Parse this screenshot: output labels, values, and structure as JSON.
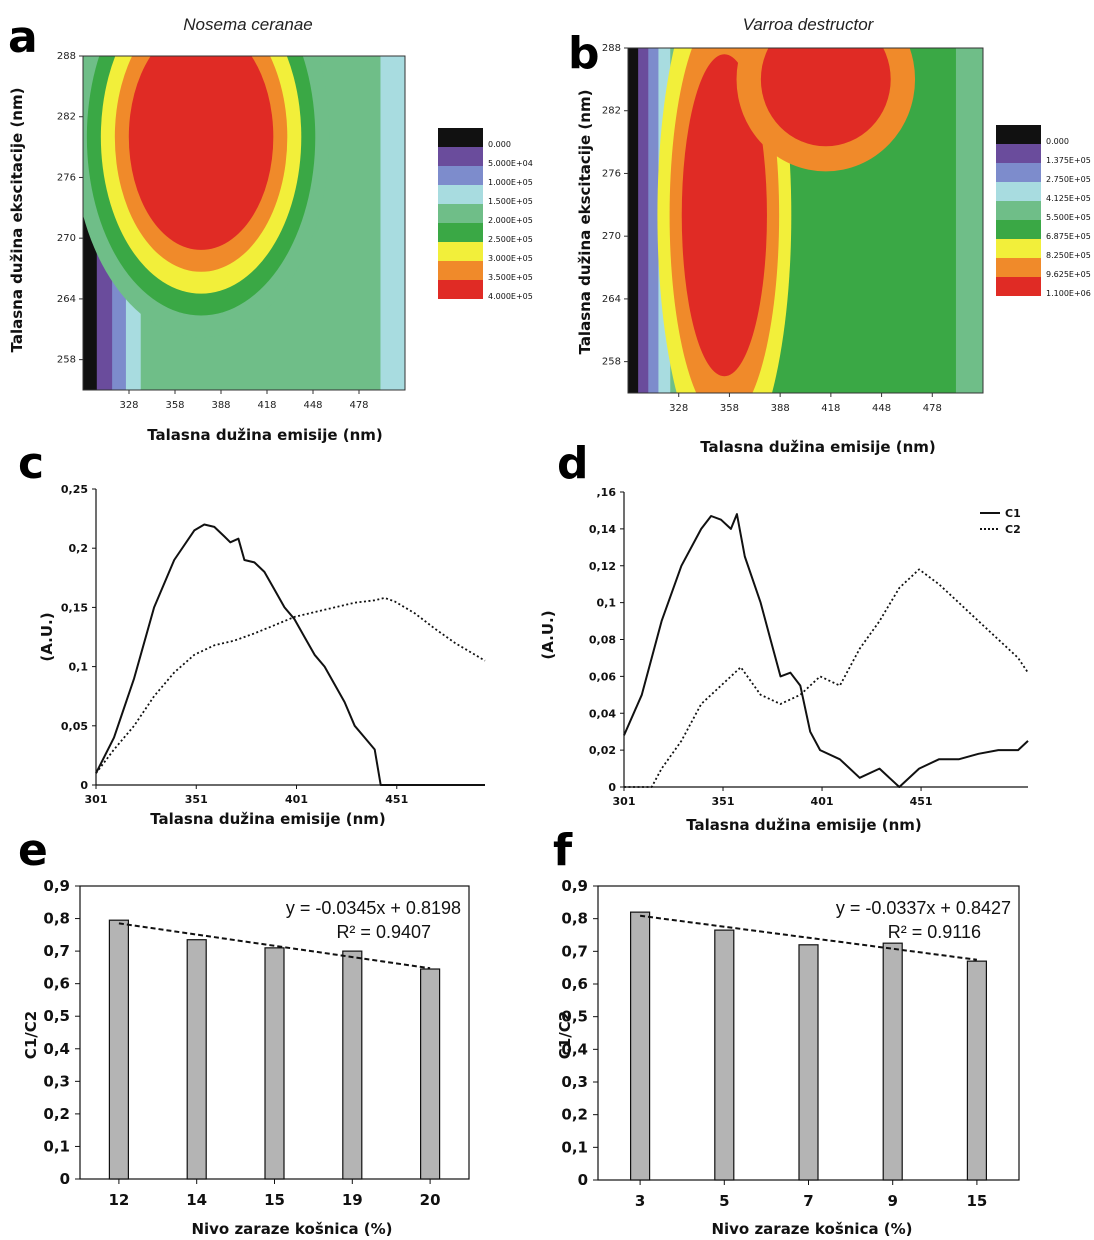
{
  "colors": {
    "scale": [
      "#111111",
      "#6a4c9c",
      "#7d8ccc",
      "#a8dce0",
      "#6fbe88",
      "#3aa845",
      "#f2ef3a",
      "#f08a2a",
      "#e02b25"
    ],
    "bar_fill": "#b4b4b4",
    "line": "#111111"
  },
  "chart_data": [
    {
      "panel": "a",
      "type": "heatmap",
      "title": "Nosema ceranae",
      "xlabel": "Talasna dužina emisije (nm)",
      "ylabel": "Talasna dužina ekscitacije (nm)",
      "x_ticks": [
        "328",
        "358",
        "388",
        "418",
        "448",
        "478"
      ],
      "y_ticks": [
        "288",
        "282",
        "276",
        "270",
        "264",
        "258"
      ],
      "xlim": [
        298,
        508
      ],
      "ylim": [
        255,
        288
      ],
      "legend_levels": [
        "0.000",
        "5.000E+04",
        "1.000E+05",
        "1.500E+05",
        "2.000E+05",
        "2.500E+05",
        "3.000E+05",
        "3.500E+05",
        "4.000E+05"
      ],
      "bands": [
        {
          "level": 0,
          "x": 298,
          "w": 9
        },
        {
          "level": 1,
          "x": 307,
          "w": 10
        },
        {
          "level": 2,
          "x": 317,
          "w": 9
        },
        {
          "level": 3,
          "x": 326,
          "w": 9
        }
      ],
      "peaks": [
        {
          "x": 375,
          "y": 280,
          "rx": 38,
          "ry": 9,
          "levels": [
            4,
            5,
            6,
            7,
            8
          ]
        }
      ]
    },
    {
      "panel": "b",
      "type": "heatmap",
      "title": "Varroa destructor",
      "xlabel": "Talasna dužina emisije (nm)",
      "ylabel": "Talasna dužina ekscitacije (nm)",
      "x_ticks": [
        "328",
        "358",
        "388",
        "418",
        "448",
        "478"
      ],
      "y_ticks": [
        "288",
        "282",
        "276",
        "270",
        "264",
        "258"
      ],
      "xlim": [
        298,
        508
      ],
      "ylim": [
        255,
        288
      ],
      "legend_levels": [
        "0.000",
        "1.375E+05",
        "2.750E+05",
        "4.125E+05",
        "5.500E+05",
        "6.875E+05",
        "8.250E+05",
        "9.625E+05",
        "1.100E+06"
      ],
      "bands": [
        {
          "level": 0,
          "x": 298,
          "w": 6
        },
        {
          "level": 1,
          "x": 304,
          "w": 6
        },
        {
          "level": 2,
          "x": 310,
          "w": 6
        },
        {
          "level": 3,
          "x": 316,
          "w": 7
        },
        {
          "level": 4,
          "x": 323,
          "w": 7
        }
      ],
      "peaks": [
        {
          "x": 355,
          "y": 272,
          "rx": 18,
          "ry": 11,
          "levels": [
            6,
            7,
            8
          ]
        },
        {
          "x": 415,
          "y": 285,
          "rx": 24,
          "ry": 4,
          "levels": [
            7,
            8
          ]
        }
      ]
    },
    {
      "panel": "c",
      "type": "line",
      "xlabel": "Talasna dužina emisije (nm)",
      "ylabel": "(A.U.)",
      "x_ticks": [
        "301",
        "351",
        "401",
        "451"
      ],
      "y_ticks": [
        "0",
        "0,05",
        "0,1",
        "0,15",
        "0,2",
        "0,25"
      ],
      "xlim": [
        301,
        495
      ],
      "ylim": [
        0,
        0.25
      ],
      "series": [
        {
          "style": "solid",
          "x": [
            301,
            310,
            320,
            330,
            340,
            350,
            355,
            360,
            365,
            368,
            372,
            375,
            380,
            385,
            390,
            395,
            400,
            405,
            410,
            415,
            420,
            425,
            430,
            435,
            440,
            443,
            450,
            495
          ],
          "y": [
            0.01,
            0.04,
            0.09,
            0.15,
            0.19,
            0.215,
            0.22,
            0.218,
            0.21,
            0.205,
            0.208,
            0.19,
            0.188,
            0.18,
            0.165,
            0.15,
            0.14,
            0.125,
            0.11,
            0.1,
            0.085,
            0.07,
            0.05,
            0.04,
            0.03,
            0.0,
            0.0,
            0.0
          ]
        },
        {
          "style": "dotted",
          "x": [
            301,
            310,
            320,
            330,
            340,
            350,
            360,
            370,
            380,
            390,
            400,
            410,
            420,
            430,
            440,
            445,
            450,
            460,
            470,
            480,
            495
          ],
          "y": [
            0.01,
            0.03,
            0.05,
            0.075,
            0.095,
            0.11,
            0.118,
            0.122,
            0.128,
            0.135,
            0.142,
            0.146,
            0.15,
            0.154,
            0.156,
            0.158,
            0.155,
            0.145,
            0.132,
            0.12,
            0.105
          ]
        }
      ]
    },
    {
      "panel": "d",
      "type": "line",
      "xlabel": "Talasna dužina emisije (nm)",
      "ylabel": "(A.U.)",
      "x_ticks": [
        "301",
        "351",
        "401",
        "451"
      ],
      "y_ticks": [
        "0",
        "0,02",
        "0,04",
        "0,06",
        "0,08",
        "0,1",
        "0,12",
        "0,14",
        ",16"
      ],
      "xlim": [
        301,
        505
      ],
      "ylim": [
        0,
        0.16
      ],
      "series": [
        {
          "name": "C1",
          "style": "solid",
          "x": [
            301,
            310,
            320,
            330,
            340,
            345,
            350,
            355,
            358,
            362,
            370,
            375,
            380,
            385,
            390,
            395,
            400,
            410,
            420,
            430,
            440,
            450,
            460,
            470,
            480,
            490,
            500,
            505
          ],
          "y": [
            0.028,
            0.05,
            0.09,
            0.12,
            0.14,
            0.147,
            0.145,
            0.14,
            0.148,
            0.125,
            0.1,
            0.08,
            0.06,
            0.062,
            0.055,
            0.03,
            0.02,
            0.015,
            0.005,
            0.01,
            0.0,
            0.01,
            0.015,
            0.015,
            0.018,
            0.02,
            0.02,
            0.025
          ]
        },
        {
          "name": "C2",
          "style": "dotted",
          "x": [
            301,
            315,
            320,
            330,
            340,
            350,
            360,
            370,
            380,
            390,
            400,
            410,
            420,
            430,
            440,
            450,
            460,
            470,
            480,
            490,
            500,
            505
          ],
          "y": [
            0.0,
            0.0,
            0.01,
            0.025,
            0.045,
            0.055,
            0.065,
            0.05,
            0.045,
            0.05,
            0.06,
            0.055,
            0.075,
            0.09,
            0.108,
            0.118,
            0.11,
            0.1,
            0.09,
            0.08,
            0.07,
            0.062
          ]
        }
      ]
    },
    {
      "panel": "e",
      "type": "bar",
      "xlabel": "Nivo zaraze košnica (%)",
      "ylabel": "C1/C2",
      "categories": [
        "12",
        "14",
        "15",
        "19",
        "20"
      ],
      "values": [
        0.795,
        0.735,
        0.71,
        0.7,
        0.645
      ],
      "y_ticks": [
        "0",
        "0,1",
        "0,2",
        "0,3",
        "0,4",
        "0,5",
        "0,6",
        "0,7",
        "0,8",
        "0,9"
      ],
      "ylim": [
        0,
        0.9
      ],
      "trendline": {
        "equation": "y = -0.0345x + 0.8198",
        "r2": "R² = 0.9407",
        "slope": -0.0345,
        "intercept": 0.8198
      }
    },
    {
      "panel": "f",
      "type": "bar",
      "xlabel": "Nivo zaraze košnica (%)",
      "ylabel": "C1/C2",
      "categories": [
        "3",
        "5",
        "7",
        "9",
        "15"
      ],
      "values": [
        0.82,
        0.765,
        0.72,
        0.725,
        0.67
      ],
      "y_ticks": [
        "0",
        "0,1",
        "0,2",
        "0,3",
        "0,4",
        "0,5",
        "0,6",
        "0,7",
        "0,8",
        "0,9"
      ],
      "ylim": [
        0,
        0.9
      ],
      "trendline": {
        "equation": "y = -0.0337x + 0.8427",
        "r2": "R² = 0.9116",
        "slope": -0.0337,
        "intercept": 0.8427
      }
    }
  ]
}
